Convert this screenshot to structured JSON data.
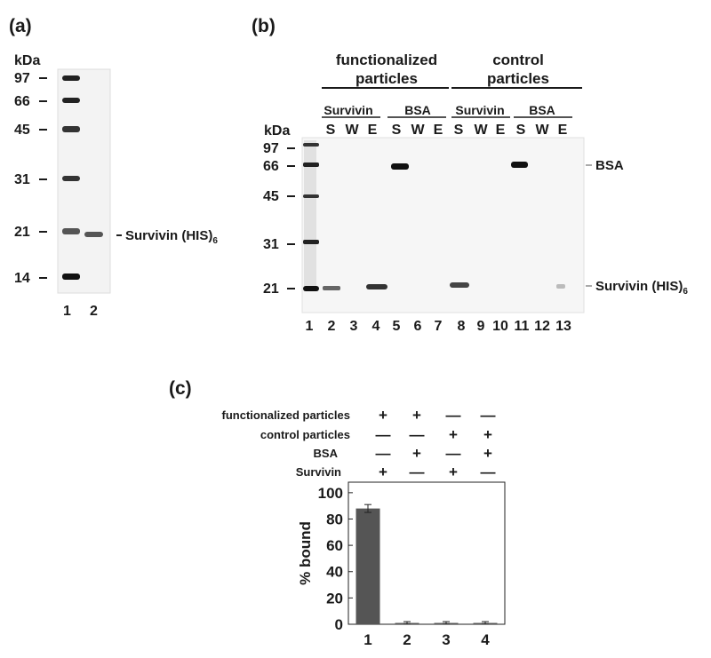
{
  "panel_a": {
    "label": "(a)",
    "unit": "kDa",
    "markers": [
      "97",
      "66",
      "45",
      "31",
      "21",
      "14"
    ],
    "lanes": [
      "1",
      "2"
    ],
    "annotation_main": "Survivin (HIS)",
    "annotation_sub": "6"
  },
  "panel_b": {
    "label": "(b)",
    "unit": "kDa",
    "group1": [
      "functionalized",
      "particles"
    ],
    "group2": [
      "control",
      "particles"
    ],
    "subgroups": [
      "Survivin",
      "BSA",
      "Survivin",
      "BSA"
    ],
    "fractions": [
      "S",
      "W",
      "E",
      "S",
      "W",
      "E",
      "S",
      "W",
      "E",
      "S",
      "W",
      "E"
    ],
    "markers": [
      "97",
      "66",
      "45",
      "31",
      "21"
    ],
    "lanes": [
      "1",
      "2",
      "3",
      "4",
      "5",
      "6",
      "7",
      "8",
      "9",
      "10",
      "11",
      "12",
      "13"
    ],
    "annotation_bsa": "BSA",
    "annotation_survivin_main": "Survivin (HIS)",
    "annotation_survivin_sub": "6"
  },
  "panel_c": {
    "label": "(c)",
    "conditions": [
      {
        "label": "functionalized particles",
        "signs": [
          "+",
          "+",
          "—",
          "—"
        ]
      },
      {
        "label": "control particles",
        "signs": [
          "—",
          "—",
          "+",
          "+"
        ]
      },
      {
        "label": "BSA",
        "signs": [
          "—",
          "+",
          "—",
          "+"
        ]
      },
      {
        "label": "Survivin",
        "signs": [
          "+",
          "—",
          "+",
          "—"
        ]
      }
    ]
  },
  "chart_data": {
    "type": "bar",
    "categories": [
      "1",
      "2",
      "3",
      "4"
    ],
    "values": [
      88,
      1,
      1,
      1
    ],
    "errors": [
      3,
      1,
      1,
      1
    ],
    "ylabel": "% bound",
    "ylim": [
      0,
      108
    ],
    "yticks": [
      0,
      20,
      40,
      60,
      80,
      100
    ],
    "grid": false,
    "bar_color": "#555555"
  }
}
